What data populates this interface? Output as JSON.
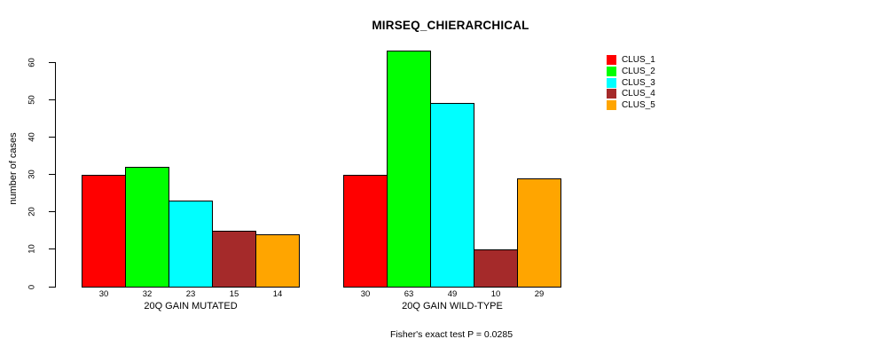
{
  "title": "MIRSEQ_CHIERARCHICAL",
  "y_axis": {
    "label": "number of cases"
  },
  "footer": "Fisher's exact test P = 0.0285",
  "legend": {
    "position": "right",
    "items": [
      {
        "label": "CLUS_1",
        "color": "#FF0000"
      },
      {
        "label": "CLUS_2",
        "color": "#00FF00"
      },
      {
        "label": "CLUS_3",
        "color": "#00FFFF"
      },
      {
        "label": "CLUS_4",
        "color": "#A52A2A"
      },
      {
        "label": "CLUS_5",
        "color": "#FFA500"
      }
    ]
  },
  "chart_data": {
    "type": "bar",
    "title": "MIRSEQ_CHIERARCHICAL",
    "ylabel": "number of cases",
    "ylim": [
      0,
      60
    ],
    "yticks": [
      0,
      10,
      20,
      30,
      40,
      50,
      60
    ],
    "grid": false,
    "legend_position": "right",
    "bar_value_labels": true,
    "categories": [
      "20Q GAIN MUTATED",
      "20Q GAIN WILD-TYPE"
    ],
    "series": [
      {
        "name": "CLUS_1",
        "color": "#FF0000",
        "values": [
          30,
          30
        ]
      },
      {
        "name": "CLUS_2",
        "color": "#00FF00",
        "values": [
          32,
          63
        ]
      },
      {
        "name": "CLUS_3",
        "color": "#00FFFF",
        "values": [
          23,
          49
        ]
      },
      {
        "name": "CLUS_4",
        "color": "#A52A2A",
        "values": [
          15,
          10
        ]
      },
      {
        "name": "CLUS_5",
        "color": "#FFA500",
        "values": [
          14,
          29
        ]
      }
    ],
    "annotation": "Fisher's exact test P = 0.0285"
  }
}
